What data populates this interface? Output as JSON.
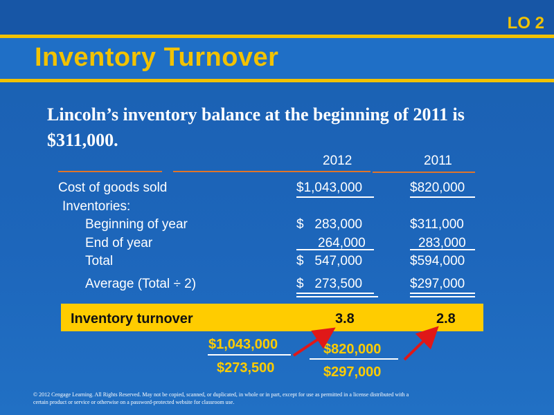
{
  "header": {
    "lo_label": "LO 2",
    "title": "Inventory Turnover"
  },
  "intro": "Lincoln’s inventory balance at the beginning of 2011 is $311,000.",
  "table": {
    "col_headers": [
      "2012",
      "2011"
    ],
    "rows": [
      {
        "label": "Cost of goods sold",
        "v2012": "$1,043,000",
        "v2011": "$820,000"
      },
      {
        "label": "Inventories:",
        "v2012": "",
        "v2011": ""
      },
      {
        "label": "Beginning of year",
        "v2012": "$   283,000",
        "v2011": "$311,000"
      },
      {
        "label": "End of year",
        "v2012": "264,000",
        "v2011": "283,000"
      },
      {
        "label": "Total",
        "v2012": "$   547,000",
        "v2011": "$594,000"
      },
      {
        "label": "Average (Total ÷ 2)",
        "v2012": "$   273,500",
        "v2011": "$297,000"
      }
    ]
  },
  "turnover": {
    "label": "Inventory turnover",
    "v2012": "3.8",
    "v2011": "2.8"
  },
  "fractions": {
    "f2012": {
      "numerator": "$1,043,000",
      "denominator": "$273,500"
    },
    "f2011": {
      "numerator": "$820,000",
      "denominator": "$297,000"
    }
  },
  "footer": "© 2012 Cengage Learning. All Rights Reserved. May not be copied, scanned, or duplicated, in whole or in part, except for use as permitted in a license distributed with a certain product or service or otherwise on a password-protected website for classroom use.",
  "colors": {
    "accent_yellow": "#f2c200",
    "band_yellow": "#ffcc00",
    "rule_orange": "#e0752a",
    "arrow_red": "#e01818"
  }
}
